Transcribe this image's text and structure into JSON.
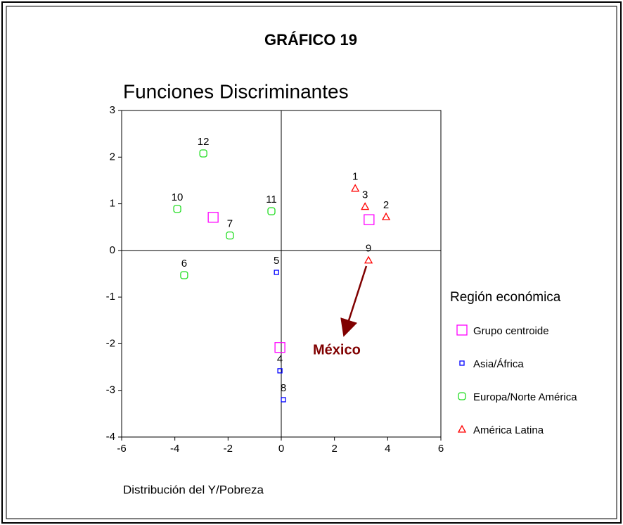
{
  "chart_data": {
    "type": "scatter",
    "title": "GRÁFICO 19",
    "subtitle": "Funciones Discriminantes",
    "x_label": "Distribución del Y/Pobreza",
    "legend_title": "Región económica",
    "legend": "right",
    "xlim": [
      -6,
      6
    ],
    "ylim": [
      -4,
      3
    ],
    "xticks": [
      -6,
      -4,
      -2,
      0,
      2,
      4,
      6
    ],
    "yticks": [
      -4,
      -3,
      -2,
      -1,
      0,
      1,
      2,
      3
    ],
    "annotations": [
      {
        "text": "México",
        "color": "#800000"
      }
    ],
    "series": [
      {
        "name": "Grupo centroide",
        "color": "#ff00ff",
        "marker": "square-large",
        "x": [
          -2.56,
          3.3,
          -0.05
        ],
        "values": [
          0.71,
          0.66,
          -2.08
        ]
      },
      {
        "name": "Asia/África",
        "color": "#0000ff",
        "marker": "square-small",
        "x": [
          -0.18,
          -0.05,
          0.08
        ],
        "values": [
          -0.47,
          -2.58,
          -3.2
        ],
        "labels": [
          "5",
          "4",
          "8"
        ]
      },
      {
        "name": "Europa/Norte América",
        "color": "#22dd22",
        "marker": "circle-square",
        "x": [
          -2.93,
          -3.91,
          -0.37,
          -1.93,
          -3.65
        ],
        "values": [
          2.08,
          0.89,
          0.84,
          0.32,
          -0.53
        ],
        "labels": [
          "12",
          "10",
          "11",
          "7",
          "6"
        ]
      },
      {
        "name": "América Latina",
        "color": "#ff0000",
        "marker": "triangle",
        "x": [
          2.78,
          3.15,
          3.94,
          3.28
        ],
        "values": [
          1.33,
          0.94,
          0.72,
          -0.21
        ],
        "labels": [
          "1",
          "3",
          "2",
          "9"
        ]
      }
    ]
  }
}
